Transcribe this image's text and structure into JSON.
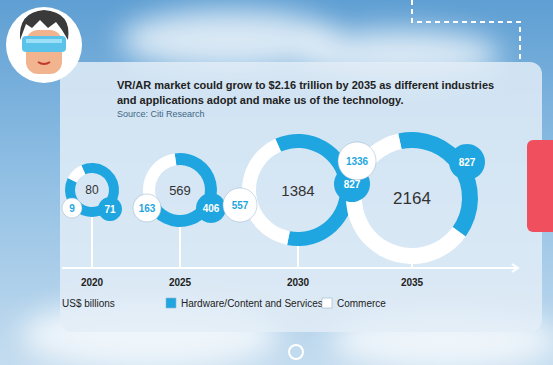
{
  "chart_data": {
    "type": "ring",
    "title": "VR/AR market could grow to $2.16 trillion by 2035 as different industries and applications adopt and make us of the technology.",
    "subtitle": "Source: Citi Research",
    "annotation": "US$ billions",
    "categories": [
      "2020",
      "2025",
      "2030",
      "2035"
    ],
    "totals": [
      80,
      569,
      1384,
      2164
    ],
    "series": [
      {
        "name": "Hardware/Content and Services",
        "color": "#1fa6e0",
        "values": [
          71,
          406,
          827,
          827
        ]
      },
      {
        "name": "Commerce",
        "color": "#ffffff",
        "values": [
          9,
          163,
          557,
          1336
        ]
      }
    ],
    "data_labels": true,
    "legend": "bottom"
  }
}
